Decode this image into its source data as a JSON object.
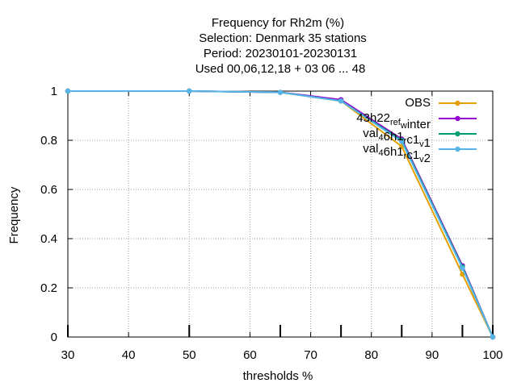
{
  "chart_data": {
    "type": "line",
    "title_lines": [
      "Frequency  for Rh2m (%)",
      "Selection: Denmark     35 stations",
      "Period: 20230101-20230131",
      "Used  00,06,12,18  + 03 06 ... 48"
    ],
    "xlabel": "thresholds %",
    "ylabel": "Frequency",
    "xlim": [
      30,
      100
    ],
    "ylim": [
      0,
      1
    ],
    "xticks": [
      "30",
      "40",
      "50",
      "60",
      "70",
      "80",
      "90",
      "100"
    ],
    "yticks": [
      "0",
      "0.2",
      "0.4",
      "0.6",
      "0.8",
      "1"
    ],
    "grid": true,
    "legend_position": "top-right",
    "x": [
      30,
      50,
      65,
      75,
      85,
      95,
      100
    ],
    "series": [
      {
        "name": "OBS",
        "legend": {
          "main": "OBS"
        },
        "color": "#e69f00",
        "values": [
          1.0,
          1.0,
          0.995,
          0.96,
          0.775,
          0.255,
          0.0
        ]
      },
      {
        "name": "43h22_ref_winter",
        "legend": {
          "main": "43h22",
          "sub1": "ref",
          "mid": "",
          "sub2": "w",
          "tail": "inter"
        },
        "color": "#9400d3",
        "values": [
          1.0,
          1.0,
          0.995,
          0.965,
          0.805,
          0.29,
          0.0
        ]
      },
      {
        "name": "val_46h1_rc1_v1",
        "legend": {
          "main": "val",
          "sub1": "4",
          "mid": "6h1",
          "sub2": "r",
          "tail": "c1",
          "sub3": "v",
          "end": "1"
        },
        "color": "#009e73",
        "values": [
          1.0,
          1.0,
          0.995,
          0.96,
          0.8,
          0.285,
          0.0
        ]
      },
      {
        "name": "val_46h1_rc1_v2",
        "legend": {
          "main": "val",
          "sub1": "4",
          "mid": "6h1",
          "sub2": "r",
          "tail": "c1",
          "sub3": "v",
          "end": "2"
        },
        "color": "#56b4e9",
        "values": [
          1.0,
          1.0,
          0.995,
          0.96,
          0.795,
          0.28,
          0.0
        ]
      }
    ]
  }
}
